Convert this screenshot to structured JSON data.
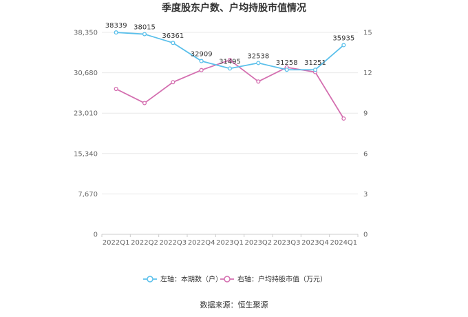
{
  "chart_data": {
    "type": "line",
    "title": "季度股东户数、户均持股市值情况",
    "categories": [
      "2022Q1",
      "2022Q2",
      "2022Q3",
      "2022Q4",
      "2023Q1",
      "2023Q2",
      "2023Q3",
      "2023Q4",
      "2024Q1"
    ],
    "left_axis": {
      "ticks": [
        "0",
        "7,670",
        "15,340",
        "23,010",
        "30,680",
        "38,350"
      ],
      "ylim": [
        0,
        38350
      ]
    },
    "right_axis": {
      "ticks": [
        "0",
        "3",
        "6",
        "9",
        "12",
        "15"
      ],
      "ylim": [
        0,
        15
      ]
    },
    "series": [
      {
        "name": "左轴：本期数（户）",
        "axis": "left",
        "color": "#5bc0eb",
        "values": [
          38339,
          38015,
          36361,
          32909,
          31495,
          32538,
          31258,
          31251,
          35935
        ],
        "labels": [
          "38339",
          "38015",
          "36361",
          "32909",
          "31495",
          "32538",
          "31258",
          "31251",
          "35935"
        ]
      },
      {
        "name": "右轴：户均持股市值（万元）",
        "axis": "right",
        "color": "#d46fb0",
        "values": [
          10.8,
          9.75,
          11.3,
          12.2,
          12.95,
          11.35,
          12.4,
          12.05,
          8.6
        ]
      }
    ],
    "grid": true,
    "legend_position": "bottom"
  },
  "footer": {
    "source": "数据来源：恒生聚源"
  }
}
